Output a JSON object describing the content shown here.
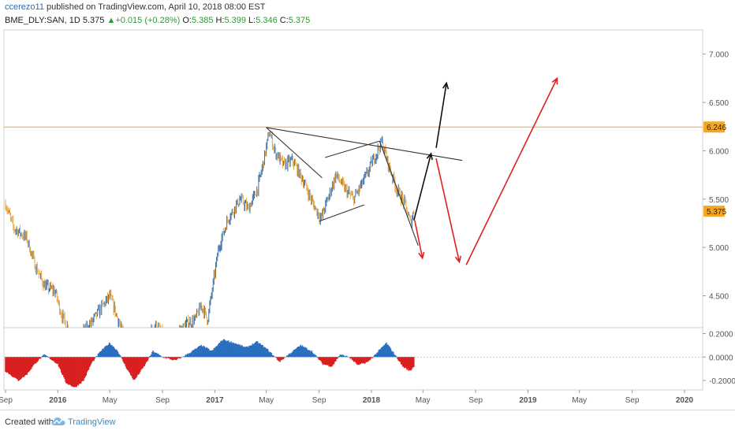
{
  "header": {
    "user": "ccerezo11",
    "published": "published on TradingView.com, April 10, 2018 08:00 EST",
    "symbol": "BME_DLY:SAN, 1D",
    "price": "5.375",
    "change": "+0.015 (+0.28%)",
    "o_label": "O:",
    "o_value": "5.385",
    "h_label": "H:",
    "h_value": "5.399",
    "l_label": "L:",
    "l_value": "5.346",
    "c_label": "C:",
    "c_value": "5.375"
  },
  "footer": {
    "created_with": "Created with",
    "brand": "TradingView",
    "logo_icon": "tradingview-cloud-icon"
  },
  "colors": {
    "candle_up": "#3a6ea5",
    "candle_down": "#e8a640",
    "resistance": "#f0a040",
    "hist_pos": "#2a6fbf",
    "hist_neg": "#d92020",
    "bull_arrow": "#111111",
    "bear_arrow": "#e02020",
    "price_tag": "#f5a623"
  },
  "chart_data": [
    {
      "type": "candlestick",
      "symbol": "BME_DLY:SAN",
      "interval": "1D",
      "x_tick_labels": [
        "Sep",
        "2016",
        "May",
        "Sep",
        "2017",
        "May",
        "Sep",
        "2018",
        "May",
        "Sep",
        "2019",
        "May",
        "Sep",
        "2020"
      ],
      "x_tick_dates": [
        "2015-09-01",
        "2016-01-01",
        "2016-05-01",
        "2016-09-01",
        "2017-01-01",
        "2017-05-01",
        "2017-09-01",
        "2018-01-01",
        "2018-05-01",
        "2018-09-01",
        "2019-01-01",
        "2019-05-01",
        "2019-09-01",
        "2020-01-01"
      ],
      "y_tick_labels": [
        "7.000",
        "6.500",
        "6.000",
        "5.500",
        "5.000",
        "4.500"
      ],
      "ylim": [
        4.17,
        7.25
      ],
      "price_line": {
        "value": 6.246,
        "label": "6.246"
      },
      "last_price": {
        "value": 5.375,
        "label": "5.375"
      },
      "path_dates": [
        "2015-09-01",
        "2015-09-20",
        "2015-10-20",
        "2015-11-10",
        "2015-12-01",
        "2015-12-25",
        "2016-01-10",
        "2016-02-01",
        "2016-02-15",
        "2016-03-15",
        "2016-04-15",
        "2016-05-01",
        "2016-06-01",
        "2016-06-24",
        "2016-07-10",
        "2016-08-15",
        "2016-09-10",
        "2016-10-01",
        "2016-10-25",
        "2016-11-15",
        "2016-12-01",
        "2016-12-15",
        "2017-01-10",
        "2017-02-01",
        "2017-03-01",
        "2017-03-20",
        "2017-04-10",
        "2017-04-25",
        "2017-05-08",
        "2017-05-20",
        "2017-06-10",
        "2017-07-01",
        "2017-07-25",
        "2017-08-18",
        "2017-09-05",
        "2017-09-25",
        "2017-10-10",
        "2017-11-01",
        "2017-11-20",
        "2017-12-15",
        "2018-01-05",
        "2018-01-25",
        "2018-02-10",
        "2018-03-01",
        "2018-03-20",
        "2018-04-02",
        "2018-04-10"
      ],
      "path_values": [
        5.45,
        5.2,
        5.1,
        4.8,
        4.6,
        4.55,
        4.3,
        4.1,
        4.05,
        4.2,
        4.4,
        4.5,
        4.1,
        3.7,
        3.95,
        4.2,
        4.05,
        4.1,
        4.2,
        4.25,
        4.4,
        4.25,
        5.0,
        5.3,
        5.5,
        5.4,
        5.6,
        5.9,
        6.2,
        6.0,
        5.85,
        5.9,
        5.7,
        5.45,
        5.3,
        5.55,
        5.75,
        5.6,
        5.5,
        5.7,
        5.9,
        6.1,
        5.85,
        5.6,
        5.45,
        5.25,
        5.375
      ],
      "annotations": [
        {
          "kind": "trendline",
          "color": "#333333",
          "points": [
            [
              "2017-05-01",
              6.24
            ],
            [
              "2018-08-01",
              5.9
            ]
          ]
        },
        {
          "kind": "trendline",
          "color": "#333333",
          "points": [
            [
              "2017-05-01",
              6.24
            ],
            [
              "2017-09-08",
              5.72
            ]
          ]
        },
        {
          "kind": "trendline",
          "color": "#333333",
          "points": [
            [
              "2018-01-20",
              6.1
            ],
            [
              "2018-04-20",
              5.02
            ]
          ]
        },
        {
          "kind": "trendline",
          "color": "#333333",
          "points": [
            [
              "2017-09-15",
              5.93
            ],
            [
              "2018-01-20",
              6.1
            ]
          ]
        },
        {
          "kind": "trendline",
          "color": "#333333",
          "points": [
            [
              "2017-09-01",
              5.27
            ],
            [
              "2017-12-15",
              5.44
            ]
          ]
        },
        {
          "kind": "arrow",
          "color": "#111111",
          "points": [
            [
              "2018-04-10",
              5.28
            ],
            [
              "2018-05-20",
              5.97
            ]
          ]
        },
        {
          "kind": "arrow",
          "color": "#111111",
          "points": [
            [
              "2018-06-01",
              6.03
            ],
            [
              "2018-06-25",
              6.7
            ]
          ]
        },
        {
          "kind": "arrow",
          "color": "#e02020",
          "points": [
            [
              "2018-04-12",
              5.28
            ],
            [
              "2018-04-30",
              4.89
            ]
          ]
        },
        {
          "kind": "arrow",
          "color": "#e02020",
          "points": [
            [
              "2018-06-01",
              5.92
            ],
            [
              "2018-07-25",
              4.85
            ]
          ]
        },
        {
          "kind": "arrow",
          "color": "#e02020",
          "points": [
            [
              "2018-08-10",
              4.82
            ],
            [
              "2019-03-10",
              6.75
            ]
          ]
        }
      ]
    },
    {
      "type": "area",
      "name": "oscillator",
      "y_tick_labels": [
        "0.2000",
        "0.0000",
        "-0.2000"
      ],
      "ylim": [
        -0.28,
        0.25
      ],
      "zero_line": 0.0,
      "x": [
        "2015-09-01",
        "2015-10-01",
        "2015-10-20",
        "2015-11-10",
        "2015-12-01",
        "2016-01-01",
        "2016-01-20",
        "2016-02-10",
        "2016-03-01",
        "2016-03-20",
        "2016-04-10",
        "2016-05-01",
        "2016-05-20",
        "2016-06-10",
        "2016-06-27",
        "2016-07-20",
        "2016-08-10",
        "2016-09-01",
        "2016-10-01",
        "2016-11-01",
        "2016-12-01",
        "2016-12-25",
        "2017-01-20",
        "2017-02-15",
        "2017-03-15",
        "2017-04-10",
        "2017-05-05",
        "2017-06-01",
        "2017-06-25",
        "2017-07-20",
        "2017-08-15",
        "2017-09-10",
        "2017-10-01",
        "2017-10-20",
        "2017-11-10",
        "2017-12-01",
        "2017-12-25",
        "2018-01-15",
        "2018-02-05",
        "2018-02-25",
        "2018-03-15",
        "2018-04-01",
        "2018-04-10"
      ],
      "values": [
        -0.12,
        -0.2,
        -0.15,
        -0.05,
        0.02,
        -0.06,
        -0.22,
        -0.26,
        -0.2,
        -0.05,
        0.05,
        0.12,
        0.05,
        -0.1,
        -0.2,
        -0.08,
        0.05,
        0.0,
        -0.03,
        0.03,
        0.1,
        0.05,
        0.15,
        0.12,
        0.08,
        0.13,
        0.06,
        -0.04,
        0.03,
        0.1,
        0.05,
        -0.06,
        -0.08,
        0.02,
        0.0,
        -0.07,
        -0.04,
        0.04,
        0.12,
        0.02,
        -0.08,
        -0.12,
        -0.08
      ]
    }
  ]
}
